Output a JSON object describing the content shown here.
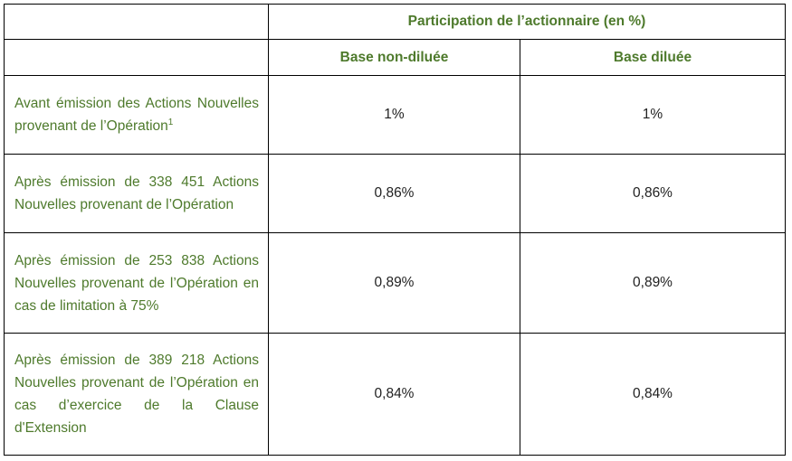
{
  "table": {
    "header_title": "Participation de l’actionnaire (en %)",
    "col_non_dilue": "Base non-diluée",
    "col_dilue": "Base diluée",
    "rows": [
      {
        "label": "Avant émission des Actions Nouvelles provenant de l’Opération",
        "footnote": "1",
        "non_dilue": "1%",
        "dilue": "1%"
      },
      {
        "label": "Après émission de 338 451 Actions Nouvelles provenant de l’Opération",
        "non_dilue": "0,86%",
        "dilue": "0,86%"
      },
      {
        "label": "Après émission de 253 838 Actions Nouvelles provenant de l’Opération en cas de limitation à 75%",
        "non_dilue": "0,89%",
        "dilue": "0,89%"
      },
      {
        "label": "Après émission de 389 218 Actions Nouvelles provenant de l’Opération en cas d’exercice de la Clause d'Extension",
        "non_dilue": "0,84%",
        "dilue": "0,84%"
      }
    ]
  },
  "colors": {
    "header_text": "#4e7a2c",
    "label_text": "#4e7a2c",
    "border": "#000000"
  }
}
